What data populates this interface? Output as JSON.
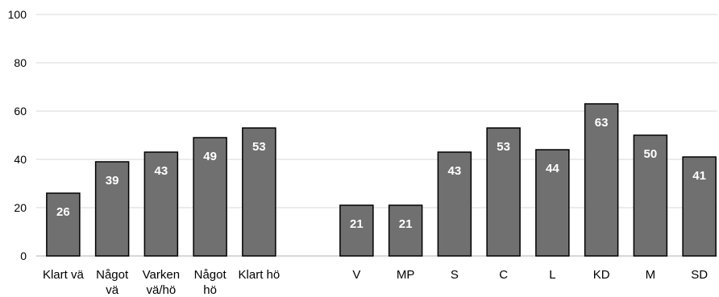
{
  "chart_data": {
    "type": "bar",
    "title": "",
    "xlabel": "",
    "ylabel": "",
    "ylim": [
      0,
      100
    ],
    "yticks": [
      0,
      20,
      40,
      60,
      80,
      100
    ],
    "grid": true,
    "groups": [
      {
        "categories": [
          [
            "Klart vä"
          ],
          [
            "Något",
            "vä"
          ],
          [
            "Varken",
            "vä/hö"
          ],
          [
            "Något",
            "hö"
          ],
          [
            "Klart hö"
          ]
        ],
        "values": [
          26,
          39,
          43,
          49,
          53
        ]
      },
      {
        "categories": [
          [
            "V"
          ],
          [
            "MP"
          ],
          [
            "S"
          ],
          [
            "C"
          ],
          [
            "L"
          ],
          [
            "KD"
          ],
          [
            "M"
          ],
          [
            "SD"
          ]
        ],
        "values": [
          21,
          21,
          43,
          53,
          44,
          63,
          50,
          41
        ]
      }
    ],
    "colors": {
      "bar": "#707070",
      "bar_outline": "#000000",
      "label": "#ffffff",
      "grid": "#d9d9d9"
    }
  }
}
